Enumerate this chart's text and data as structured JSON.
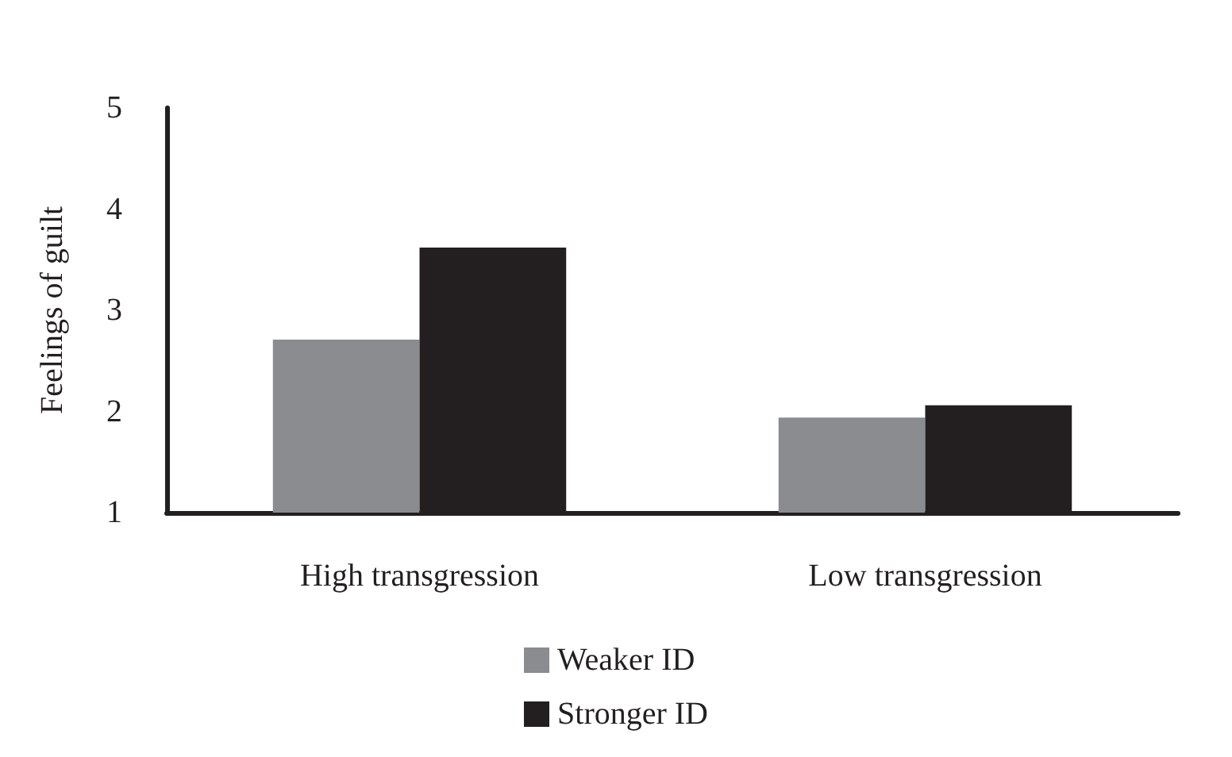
{
  "chart_data": {
    "type": "bar",
    "ylabel": "Feelings of guilt",
    "categories": [
      "High transgression",
      "Low transgression"
    ],
    "series": [
      {
        "name": "Weaker ID",
        "color": "#8b8c90",
        "values": [
          2.71,
          1.94
        ]
      },
      {
        "name": "Stronger ID",
        "color": "#231f20",
        "values": [
          3.62,
          2.06
        ]
      }
    ],
    "ylim": [
      1,
      5
    ],
    "yticks": [
      1,
      2,
      3,
      4,
      5
    ],
    "grid": false,
    "legend": "bottom"
  }
}
